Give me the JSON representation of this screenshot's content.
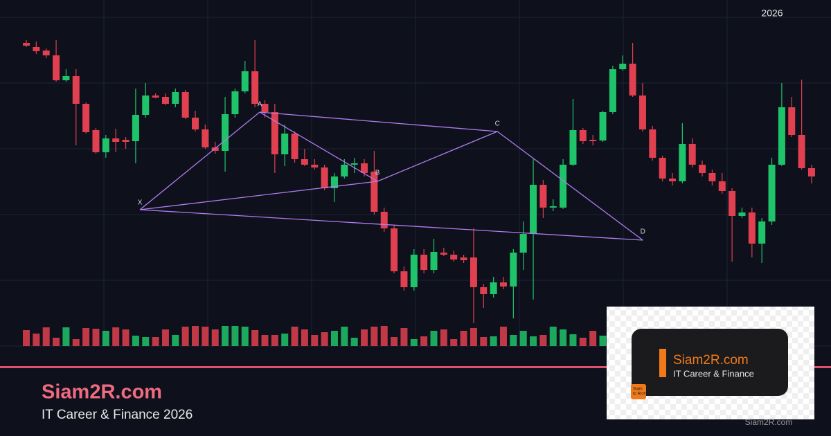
{
  "chart_data": {
    "type": "candlestick",
    "annotation": "2026",
    "up_color": "#1fc46a",
    "down_color": "#e0404f",
    "ylim": [
      0,
      475
    ],
    "open": [
      438,
      432,
      427,
      420,
      384,
      390,
      350,
      312,
      280,
      300,
      298,
      296,
      334,
      362,
      360,
      350,
      367,
      330,
      313,
      287,
      282,
      335,
      368,
      397,
      350,
      338,
      277,
      307,
      270,
      262,
      258,
      228,
      245,
      262,
      264,
      252,
      194,
      170,
      108,
      85,
      132,
      110,
      135,
      132,
      128,
      128,
      85,
      75,
      92,
      86,
      135,
      162,
      233,
      200,
      200,
      262,
      312,
      298,
      297,
      338,
      400,
      408,
      362,
      313,
      272,
      242,
      238,
      292,
      262,
      250,
      238,
      224,
      188,
      193,
      148,
      180,
      262,
      345,
      305,
      257
    ],
    "close": [
      434,
      426,
      420,
      384,
      390,
      350,
      309,
      280,
      300,
      295,
      295,
      334,
      362,
      359,
      350,
      367,
      330,
      313,
      287,
      282,
      335,
      368,
      397,
      350,
      338,
      277,
      307,
      270,
      262,
      258,
      228,
      245,
      262,
      264,
      250,
      194,
      170,
      108,
      85,
      132,
      110,
      136,
      132,
      125,
      124,
      85,
      75,
      92,
      86,
      135,
      162,
      233,
      200,
      202,
      262,
      312,
      296,
      296,
      338,
      400,
      408,
      362,
      313,
      272,
      242,
      238,
      292,
      262,
      250,
      238,
      224,
      188,
      193,
      148,
      180,
      262,
      345,
      305,
      257,
      245
    ],
    "high": [
      442,
      440,
      430,
      442,
      400,
      400,
      352,
      315,
      305,
      314,
      302,
      372,
      380,
      365,
      365,
      372,
      370,
      340,
      320,
      295,
      360,
      372,
      412,
      442,
      355,
      350,
      320,
      310,
      285,
      270,
      262,
      250,
      270,
      272,
      270,
      282,
      200,
      175,
      115,
      140,
      140,
      155,
      142,
      138,
      132,
      170,
      90,
      100,
      100,
      140,
      180,
      270,
      240,
      212,
      270,
      357,
      315,
      305,
      340,
      405,
      420,
      438,
      380,
      318,
      275,
      250,
      322,
      300,
      268,
      255,
      250,
      228,
      200,
      200,
      185,
      272,
      380,
      360,
      385,
      262
    ],
    "low": [
      432,
      422,
      416,
      382,
      382,
      290,
      307,
      278,
      272,
      280,
      285,
      264,
      330,
      358,
      348,
      345,
      328,
      310,
      285,
      278,
      252,
      330,
      365,
      345,
      330,
      250,
      260,
      265,
      260,
      255,
      225,
      208,
      242,
      250,
      245,
      190,
      165,
      105,
      80,
      80,
      105,
      105,
      130,
      122,
      120,
      33,
      55,
      70,
      82,
      40,
      110,
      67,
      185,
      195,
      198,
      260,
      292,
      290,
      295,
      335,
      398,
      360,
      310,
      268,
      238,
      232,
      235,
      258,
      245,
      232,
      220,
      122,
      185,
      128,
      120,
      175,
      260,
      302,
      255,
      235
    ],
    "volume": [
      23,
      18,
      27,
      12,
      27,
      10,
      26,
      25,
      22,
      27,
      24,
      15,
      13,
      13,
      24,
      16,
      28,
      29,
      28,
      24,
      29,
      29,
      28,
      23,
      16,
      16,
      18,
      28,
      24,
      16,
      20,
      22,
      28,
      12,
      24,
      28,
      29,
      13,
      26,
      10,
      14,
      22,
      24,
      10,
      22,
      26,
      13,
      14,
      28,
      16,
      22,
      14,
      16,
      28,
      24,
      17,
      12,
      22,
      15,
      null,
      null,
      null,
      null,
      null,
      null,
      null,
      null,
      null,
      null,
      null,
      null,
      null,
      null,
      null,
      null,
      null,
      null,
      null,
      null,
      null
    ],
    "pattern": {
      "color": "#b07cf0",
      "points": [
        {
          "label": "X",
          "x": 11.43,
          "y": 197
        },
        {
          "label": "A",
          "x": 23.48,
          "y": 338
        },
        {
          "label": "B",
          "x": 35.33,
          "y": 238
        },
        {
          "label": "C",
          "x": 47.39,
          "y": 310
        },
        {
          "label": "D",
          "x": 62.02,
          "y": 153
        }
      ],
      "edges": [
        [
          "X",
          "A"
        ],
        [
          "A",
          "B"
        ],
        [
          "B",
          "C"
        ],
        [
          "C",
          "D"
        ],
        [
          "X",
          "B"
        ],
        [
          "A",
          "C"
        ],
        [
          "X",
          "D"
        ]
      ]
    }
  },
  "branding": {
    "title": "Siam2R.com",
    "subtitle": "IT Career & Finance 2026",
    "logo_title": "Siam2R.com",
    "logo_subtitle": "IT Career & Finance",
    "logo_badge": [
      "Siam",
      "to Rich"
    ],
    "watermark": "Siam2R.com"
  }
}
